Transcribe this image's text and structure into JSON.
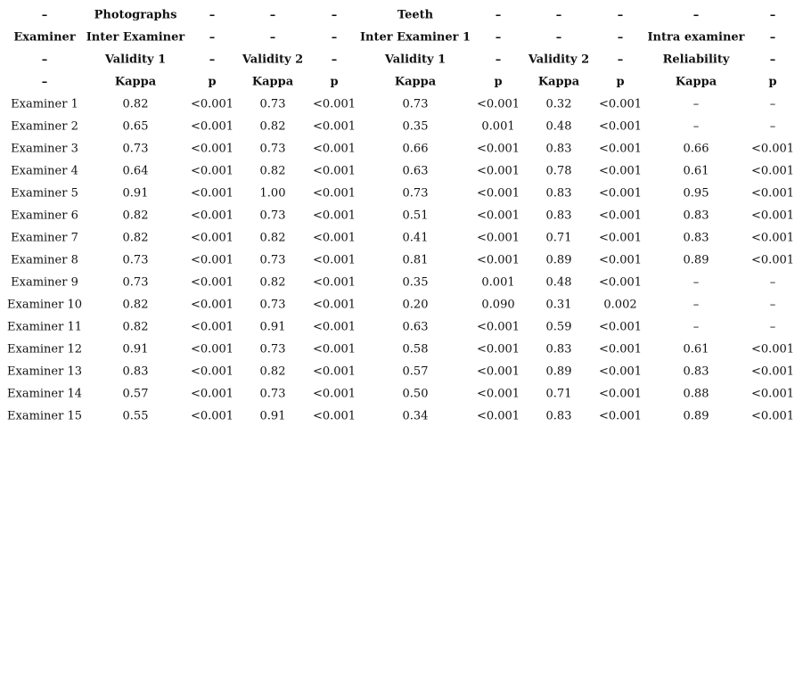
{
  "table": {
    "header": [
      [
        "–",
        "Photographs",
        "–",
        "–",
        "–",
        "Teeth",
        "–",
        "–",
        "–",
        "–",
        "–"
      ],
      [
        "Examiner",
        "Inter Examiner",
        "–",
        "–",
        "–",
        "Inter Examiner 1",
        "–",
        "–",
        "–",
        "Intra examiner",
        "–"
      ],
      [
        "–",
        "Validity 1",
        "–",
        "Validity 2",
        "–",
        "Validity 1",
        "–",
        "Validity 2",
        "–",
        "Reliability",
        "–"
      ],
      [
        "–",
        "Kappa",
        "p",
        "Kappa",
        "p",
        "Kappa",
        "p",
        "Kappa",
        "p",
        "Kappa",
        "p"
      ]
    ],
    "rows": [
      [
        "Examiner 1",
        "0.82",
        "<0.001",
        "0.73",
        "<0.001",
        "0.73",
        "<0.001",
        "0.32",
        "<0.001",
        "–",
        "–"
      ],
      [
        "Examiner 2",
        "0.65",
        "<0.001",
        "0.82",
        "<0.001",
        "0.35",
        "0.001",
        "0.48",
        "<0.001",
        "–",
        "–"
      ],
      [
        "Examiner 3",
        "0.73",
        "<0.001",
        "0.73",
        "<0.001",
        "0.66",
        "<0.001",
        "0.83",
        "<0.001",
        "0.66",
        "<0.001"
      ],
      [
        "Examiner 4",
        "0.64",
        "<0.001",
        "0.82",
        "<0.001",
        "0.63",
        "<0.001",
        "0.78",
        "<0.001",
        "0.61",
        "<0.001"
      ],
      [
        "Examiner 5",
        "0.91",
        "<0.001",
        "1.00",
        "<0.001",
        "0.73",
        "<0.001",
        "0.83",
        "<0.001",
        "0.95",
        "<0.001"
      ],
      [
        "Examiner 6",
        "0.82",
        "<0.001",
        "0.73",
        "<0.001",
        "0.51",
        "<0.001",
        "0.83",
        "<0.001",
        "0.83",
        "<0.001"
      ],
      [
        "Examiner 7",
        "0.82",
        "<0.001",
        "0.82",
        "<0.001",
        "0.41",
        "<0.001",
        "0.71",
        "<0.001",
        "0.83",
        "<0.001"
      ],
      [
        "Examiner 8",
        "0.73",
        "<0.001",
        "0.73",
        "<0.001",
        "0.81",
        "<0.001",
        "0.89",
        "<0.001",
        "0.89",
        "<0.001"
      ],
      [
        "Examiner 9",
        "0.73",
        "<0.001",
        "0.82",
        "<0.001",
        "0.35",
        "0.001",
        "0.48",
        "<0.001",
        "–",
        "–"
      ],
      [
        "Examiner 10",
        "0.82",
        "<0.001",
        "0.73",
        "<0.001",
        "0.20",
        "0.090",
        "0.31",
        "0.002",
        "–",
        "–"
      ],
      [
        "Examiner 11",
        "0.82",
        "<0.001",
        "0.91",
        "<0.001",
        "0.63",
        "<0.001",
        "0.59",
        "<0.001",
        "–",
        "–"
      ],
      [
        "Examiner 12",
        "0.91",
        "<0.001",
        "0.73",
        "<0.001",
        "0.58",
        "<0.001",
        "0.83",
        "<0.001",
        "0.61",
        "<0.001"
      ],
      [
        "Examiner 13",
        "0.83",
        "<0.001",
        "0.82",
        "<0.001",
        "0.57",
        "<0.001",
        "0.89",
        "<0.001",
        "0.83",
        "<0.001"
      ],
      [
        "Examiner 14",
        "0.57",
        "<0.001",
        "0.73",
        "<0.001",
        "0.50",
        "<0.001",
        "0.71",
        "<0.001",
        "0.88",
        "<0.001"
      ],
      [
        "Examiner 15",
        "0.55",
        "<0.001",
        "0.91",
        "<0.001",
        "0.34",
        "<0.001",
        "0.83",
        "<0.001",
        "0.89",
        "<0.001"
      ]
    ]
  }
}
